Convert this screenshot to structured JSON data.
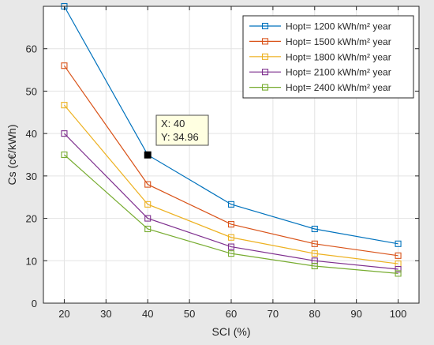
{
  "chart_data": {
    "type": "line",
    "xlabel": "SCI (%)",
    "ylabel": "Cs (c€/kWh)",
    "xlim": [
      15,
      105
    ],
    "ylim": [
      0,
      70
    ],
    "xticks": [
      20,
      30,
      40,
      50,
      60,
      70,
      80,
      90,
      100
    ],
    "yticks": [
      0,
      10,
      20,
      30,
      40,
      50,
      60
    ],
    "grid": true,
    "legend_position": "top-right",
    "x": [
      20,
      40,
      60,
      80,
      100
    ],
    "series": [
      {
        "name": "Hopt= 1200 kWh/m² year",
        "color": "#0072bd",
        "values": [
          70,
          34.96,
          23.3,
          17.5,
          14.0
        ]
      },
      {
        "name": "Hopt= 1500 kWh/m² year",
        "color": "#d95319",
        "values": [
          56,
          28.0,
          18.6,
          14.0,
          11.2
        ]
      },
      {
        "name": "Hopt= 1800 kWh/m² year",
        "color": "#edb120",
        "values": [
          46.7,
          23.3,
          15.5,
          11.7,
          9.3
        ]
      },
      {
        "name": "Hopt= 2100 kWh/m² year",
        "color": "#7e2f8e",
        "values": [
          40,
          20.0,
          13.3,
          10.0,
          8.0
        ]
      },
      {
        "name": "Hopt= 2400 kWh/m² year",
        "color": "#77ac30",
        "values": [
          35,
          17.5,
          11.7,
          8.75,
          7.0
        ]
      }
    ],
    "datatip": {
      "x": 40,
      "y": 34.96,
      "x_label": "X: 40",
      "y_label": "Y: 34.96"
    }
  }
}
